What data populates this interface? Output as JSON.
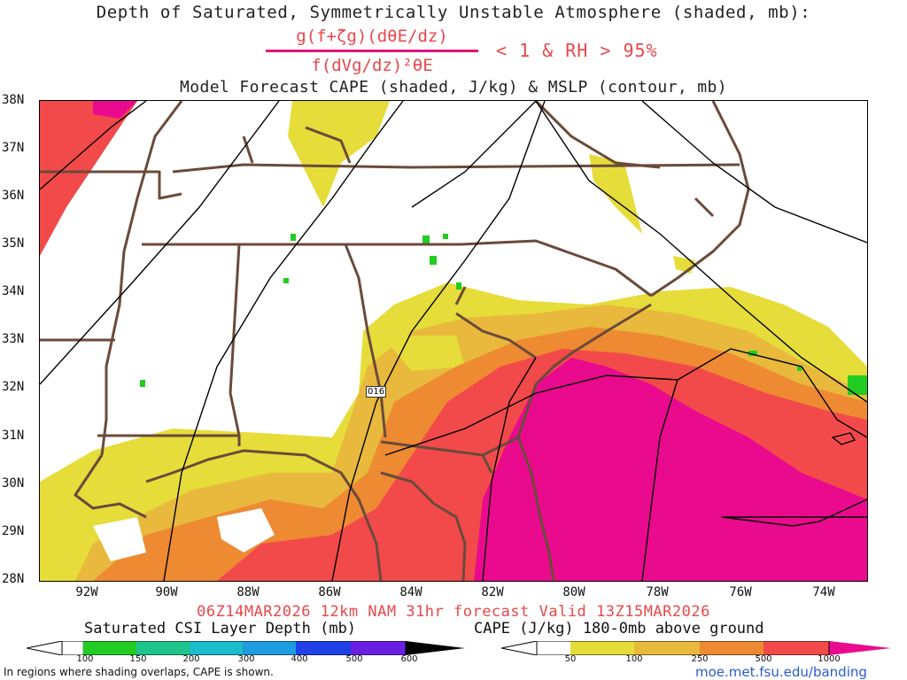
{
  "title": {
    "line1": "Depth of Saturated, Symmetrically Unstable Atmosphere (shaded, mb):",
    "numerator": "g(f+ζg)(dθE/dz)",
    "denominator": "f(dVg/dz)²θE",
    "condition": "< 1 & RH > 95%",
    "line2": "Model Forecast CAPE (shaded, J/kg) & MSLP (contour, mb)"
  },
  "map": {
    "lat_labels": [
      "38N",
      "37N",
      "36N",
      "35N",
      "34N",
      "33N",
      "32N",
      "31N",
      "30N",
      "29N",
      "28N"
    ],
    "lon_labels": [
      "92W",
      "90W",
      "88W",
      "86W",
      "84W",
      "82W",
      "80W",
      "78W",
      "76W",
      "74W"
    ],
    "station_tag": "016",
    "colors": {
      "cape_50": "#e6dc3a",
      "cape_100": "#e8b93c",
      "cape_250": "#ee8a32",
      "cape_500": "#f24a4a",
      "cape_1000": "#ea0a8e",
      "csi_100": "#22cc22",
      "borders": "#6b4a3a",
      "isobars": "#000000"
    }
  },
  "valid_line": "06Z14MAR2026 12km NAM 31hr forecast Valid 13Z15MAR2026",
  "colorbar_left": {
    "title": "Saturated CSI Layer Depth (mb)",
    "ticks": [
      "100",
      "150",
      "200",
      "300",
      "400",
      "500",
      "600"
    ],
    "colors": [
      "#ffffff",
      "#22cc22",
      "#1fc48c",
      "#1bbccc",
      "#1e9ce0",
      "#2040e8",
      "#6a20e0",
      "#9a10d0",
      "#000000"
    ]
  },
  "colorbar_right": {
    "title": "CAPE (J/kg) 180-0mb above ground",
    "ticks": [
      "50",
      "100",
      "250",
      "500",
      "1000"
    ],
    "colors": [
      "#ffffff",
      "#e6dc3a",
      "#e8b93c",
      "#ee8a32",
      "#f24a4a",
      "#ea0a8e"
    ]
  },
  "footer": {
    "note": "In regions where shading overlaps, CAPE is shown.",
    "url": "moe.met.fsu.edu/banding"
  }
}
